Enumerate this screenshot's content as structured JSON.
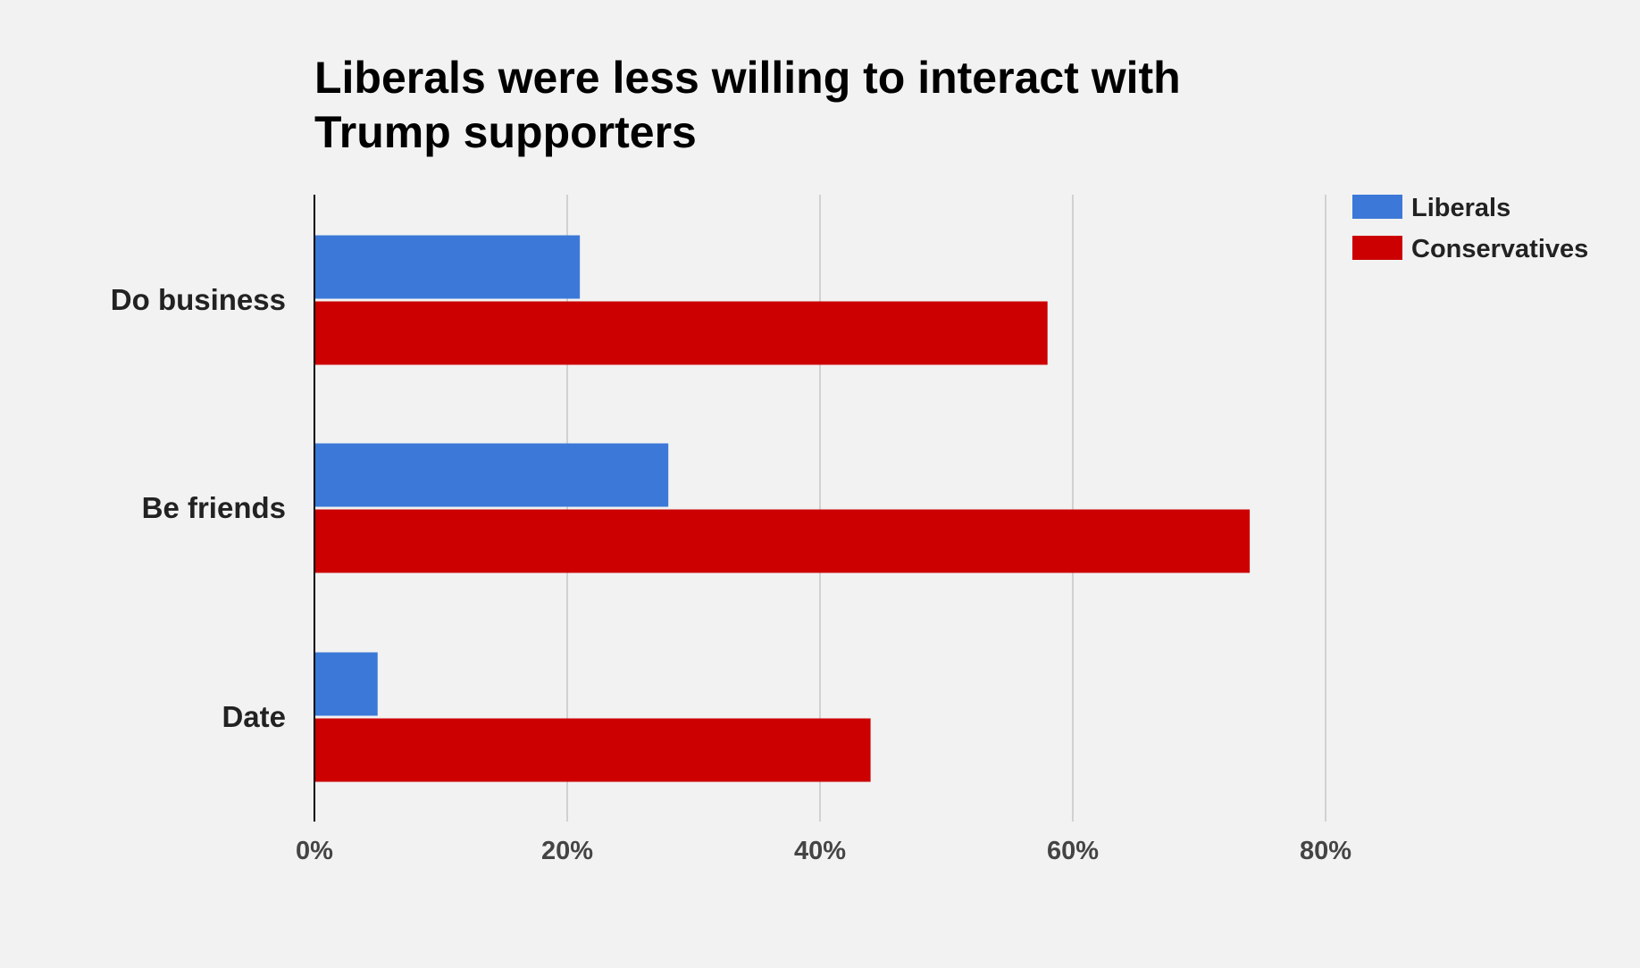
{
  "chart_data": {
    "type": "bar",
    "orientation": "horizontal",
    "title_lines": [
      "Liberals were less willing to interact with",
      "Trump supporters"
    ],
    "categories": [
      "Do business",
      "Be friends",
      "Date"
    ],
    "series": [
      {
        "name": "Liberals",
        "color": "#3c78d8",
        "values": [
          21,
          28,
          5
        ]
      },
      {
        "name": "Conservatives",
        "color": "#cc0000",
        "values": [
          58,
          74,
          44
        ]
      }
    ],
    "xlim": [
      0,
      80
    ],
    "x_ticks": [
      0,
      20,
      40,
      60,
      80
    ],
    "x_tick_labels": [
      "0%",
      "20%",
      "40%",
      "60%",
      "80%"
    ],
    "unit": "%",
    "grid": true,
    "legend_position": "top-right",
    "xlabel": "",
    "ylabel": ""
  }
}
